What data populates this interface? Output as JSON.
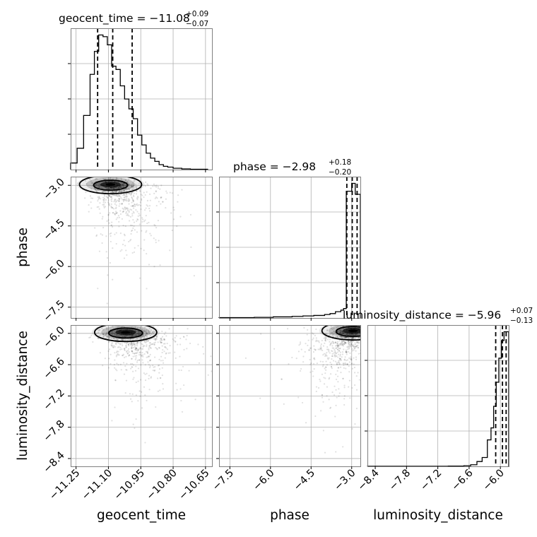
{
  "chart_data": {
    "type": "corner",
    "parameters": [
      {
        "name": "geocent_time",
        "axis_label": "geocent_time",
        "range": [
          -11.275,
          -10.62
        ],
        "ticks": [
          -11.25,
          -11.1,
          -10.95,
          -10.8,
          -10.65
        ],
        "tick_labels": [
          "−11.25",
          "−11.10",
          "−10.95",
          "−10.80",
          "−10.65"
        ],
        "title_main": "geocent_time = −11.08",
        "title_sup": "+0.09",
        "title_sub": "−0.07",
        "quantiles": [
          -11.15,
          -11.08,
          -10.99
        ],
        "hist_bin_edges": [
          -11.275,
          -11.245,
          -11.215,
          -11.185,
          -11.165,
          -11.145,
          -11.125,
          -11.105,
          -11.085,
          -11.065,
          -11.045,
          -11.025,
          -11.005,
          -10.985,
          -10.965,
          -10.945,
          -10.925,
          -10.905,
          -10.885,
          -10.865,
          -10.845,
          -10.825,
          -10.8,
          -10.76,
          -10.72,
          -10.64
        ],
        "hist_counts": [
          0.04,
          0.13,
          0.33,
          0.58,
          0.72,
          0.82,
          0.81,
          0.76,
          0.63,
          0.61,
          0.51,
          0.43,
          0.37,
          0.31,
          0.21,
          0.15,
          0.1,
          0.07,
          0.05,
          0.03,
          0.02,
          0.015,
          0.008,
          0.004,
          0.002
        ]
      },
      {
        "name": "phase",
        "axis_label": "phase",
        "range": [
          -7.9,
          -2.68
        ],
        "ticks": [
          -7.5,
          -6.0,
          -4.5,
          -3.0
        ],
        "tick_labels": [
          "−7.5",
          "−6.0",
          "−4.5",
          "−3.0"
        ],
        "title_main": "phase = −2.98",
        "title_sup": "+0.18",
        "title_sub": "−0.20",
        "quantiles": [
          -3.18,
          -2.98,
          -2.8
        ],
        "hist_bin_edges": [
          -7.9,
          -6.6,
          -5.9,
          -5.2,
          -4.8,
          -4.4,
          -4.0,
          -3.8,
          -3.6,
          -3.4,
          -3.3,
          -3.2,
          -3.0,
          -2.87,
          -2.68
        ],
        "hist_counts": [
          0.002,
          0.004,
          0.007,
          0.01,
          0.013,
          0.016,
          0.022,
          0.028,
          0.04,
          0.05,
          0.06,
          0.81,
          0.86,
          0.79
        ]
      },
      {
        "name": "luminosity_distance",
        "axis_label": "luminosity_distance",
        "range": [
          -8.55,
          -5.84
        ],
        "ticks": [
          -8.4,
          -7.8,
          -7.2,
          -6.6,
          -6.0
        ],
        "tick_labels": [
          "−8.4",
          "−7.8",
          "−7.2",
          "−6.6",
          "−6.0"
        ],
        "title_main": "luminosity_distance = −5.96",
        "title_sup": "+0.07",
        "title_sub": "−0.13",
        "quantiles": [
          -6.09,
          -5.96,
          -5.89
        ],
        "hist_bin_edges": [
          -8.55,
          -7.0,
          -6.7,
          -6.57,
          -6.45,
          -6.35,
          -6.25,
          -6.18,
          -6.13,
          -6.08,
          -6.03,
          -5.98,
          -5.93,
          -5.84
        ],
        "hist_counts": [
          0.001,
          0.003,
          0.008,
          0.02,
          0.06,
          0.11,
          0.33,
          0.48,
          0.75,
          1.05,
          1.35,
          1.57,
          1.68
        ]
      }
    ],
    "pairs": [
      {
        "x": "geocent_time",
        "y": "phase",
        "mode_x": -11.09,
        "mode_y": -2.97,
        "spread_x": 0.05,
        "spread_y": 0.12
      },
      {
        "x": "geocent_time",
        "y": "luminosity_distance",
        "mode_x": -11.02,
        "mode_y": -5.98,
        "spread_x": 0.06,
        "spread_y": 0.06
      },
      {
        "x": "phase",
        "y": "luminosity_distance",
        "mode_x": -2.95,
        "mode_y": -5.95,
        "spread_x": 0.25,
        "spread_y": 0.08
      }
    ],
    "grid": true
  }
}
